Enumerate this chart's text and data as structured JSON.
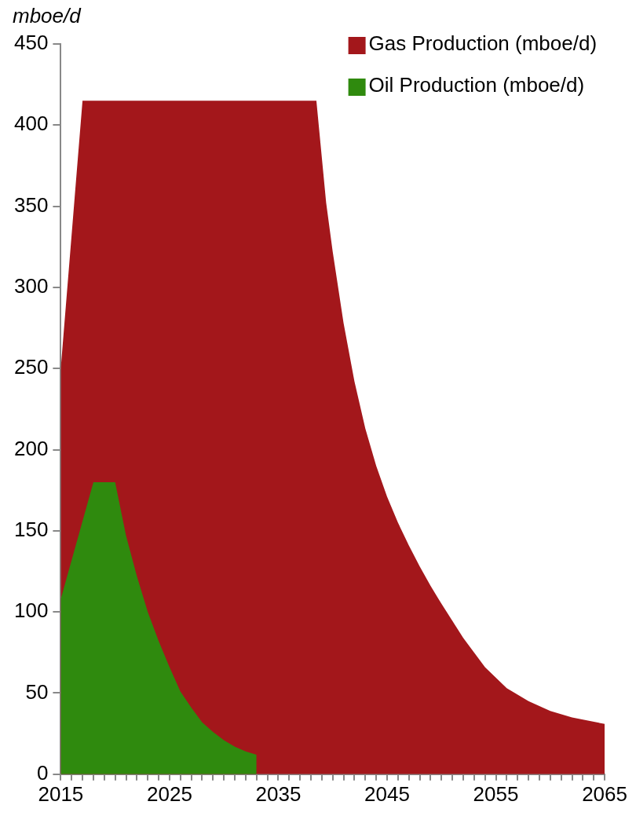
{
  "chart_data": {
    "type": "area",
    "ylabel": "mboe/d",
    "xlim": [
      2015,
      2065
    ],
    "ylim": [
      0,
      450
    ],
    "xticks": [
      2015,
      {
        "value": 2016,
        "label": null
      },
      {
        "value": 2017,
        "label": null
      },
      {
        "value": 2018,
        "label": null
      },
      {
        "value": 2019,
        "label": null
      },
      {
        "value": 2020,
        "label": null
      },
      {
        "value": 2021,
        "label": null
      },
      {
        "value": 2022,
        "label": null
      },
      {
        "value": 2023,
        "label": null
      },
      {
        "value": 2024,
        "label": null
      },
      2025,
      {
        "value": 2026,
        "label": null
      },
      {
        "value": 2027,
        "label": null
      },
      {
        "value": 2028,
        "label": null
      },
      {
        "value": 2029,
        "label": null
      },
      {
        "value": 2030,
        "label": null
      },
      {
        "value": 2031,
        "label": null
      },
      {
        "value": 2032,
        "label": null
      },
      {
        "value": 2033,
        "label": null
      },
      {
        "value": 2034,
        "label": null
      },
      2035,
      {
        "value": 2036,
        "label": null
      },
      {
        "value": 2037,
        "label": null
      },
      {
        "value": 2038,
        "label": null
      },
      {
        "value": 2039,
        "label": null
      },
      {
        "value": 2040,
        "label": null
      },
      {
        "value": 2041,
        "label": null
      },
      {
        "value": 2042,
        "label": null
      },
      {
        "value": 2043,
        "label": null
      },
      {
        "value": 2044,
        "label": null
      },
      2045,
      {
        "value": 2046,
        "label": null
      },
      {
        "value": 2047,
        "label": null
      },
      {
        "value": 2048,
        "label": null
      },
      {
        "value": 2049,
        "label": null
      },
      {
        "value": 2050,
        "label": null
      },
      {
        "value": 2051,
        "label": null
      },
      {
        "value": 2052,
        "label": null
      },
      {
        "value": 2053,
        "label": null
      },
      {
        "value": 2054,
        "label": null
      },
      2055,
      {
        "value": 2056,
        "label": null
      },
      {
        "value": 2057,
        "label": null
      },
      {
        "value": 2058,
        "label": null
      },
      {
        "value": 2059,
        "label": null
      },
      {
        "value": 2060,
        "label": null
      },
      {
        "value": 2061,
        "label": null
      },
      {
        "value": 2062,
        "label": null
      },
      {
        "value": 2063,
        "label": null
      },
      {
        "value": 2064,
        "label": null
      },
      2065
    ],
    "yticks": [
      0,
      50,
      100,
      150,
      200,
      250,
      300,
      350,
      400,
      450
    ],
    "grid": false,
    "legend": "top right",
    "series": [
      {
        "name": "Gas Production (mboe/d)",
        "color": "#a3171b",
        "x": [
          2015,
          2017,
          2038.5,
          2039.4,
          2040,
          2041,
          2042,
          2043,
          2044,
          2045,
          2046,
          2047,
          2048,
          2049,
          2050,
          2052,
          2054,
          2056,
          2058,
          2060,
          2062,
          2065
        ],
        "values": [
          250,
          415,
          415,
          352,
          322,
          278,
          242,
          213,
          190,
          171,
          155,
          141,
          128,
          116,
          105,
          84,
          66,
          53,
          45,
          39,
          35,
          31
        ]
      },
      {
        "name": "Oil Production (mboe/d)",
        "color": "#2f8a0e",
        "x": [
          2015,
          2018,
          2020,
          2021,
          2022,
          2023,
          2024,
          2025,
          2026,
          2027,
          2028,
          2029,
          2030,
          2031,
          2032,
          2033
        ],
        "values": [
          108,
          180,
          180,
          147,
          122,
          100,
          82,
          66,
          51,
          41,
          32,
          26,
          21,
          17,
          14,
          12
        ]
      }
    ]
  }
}
